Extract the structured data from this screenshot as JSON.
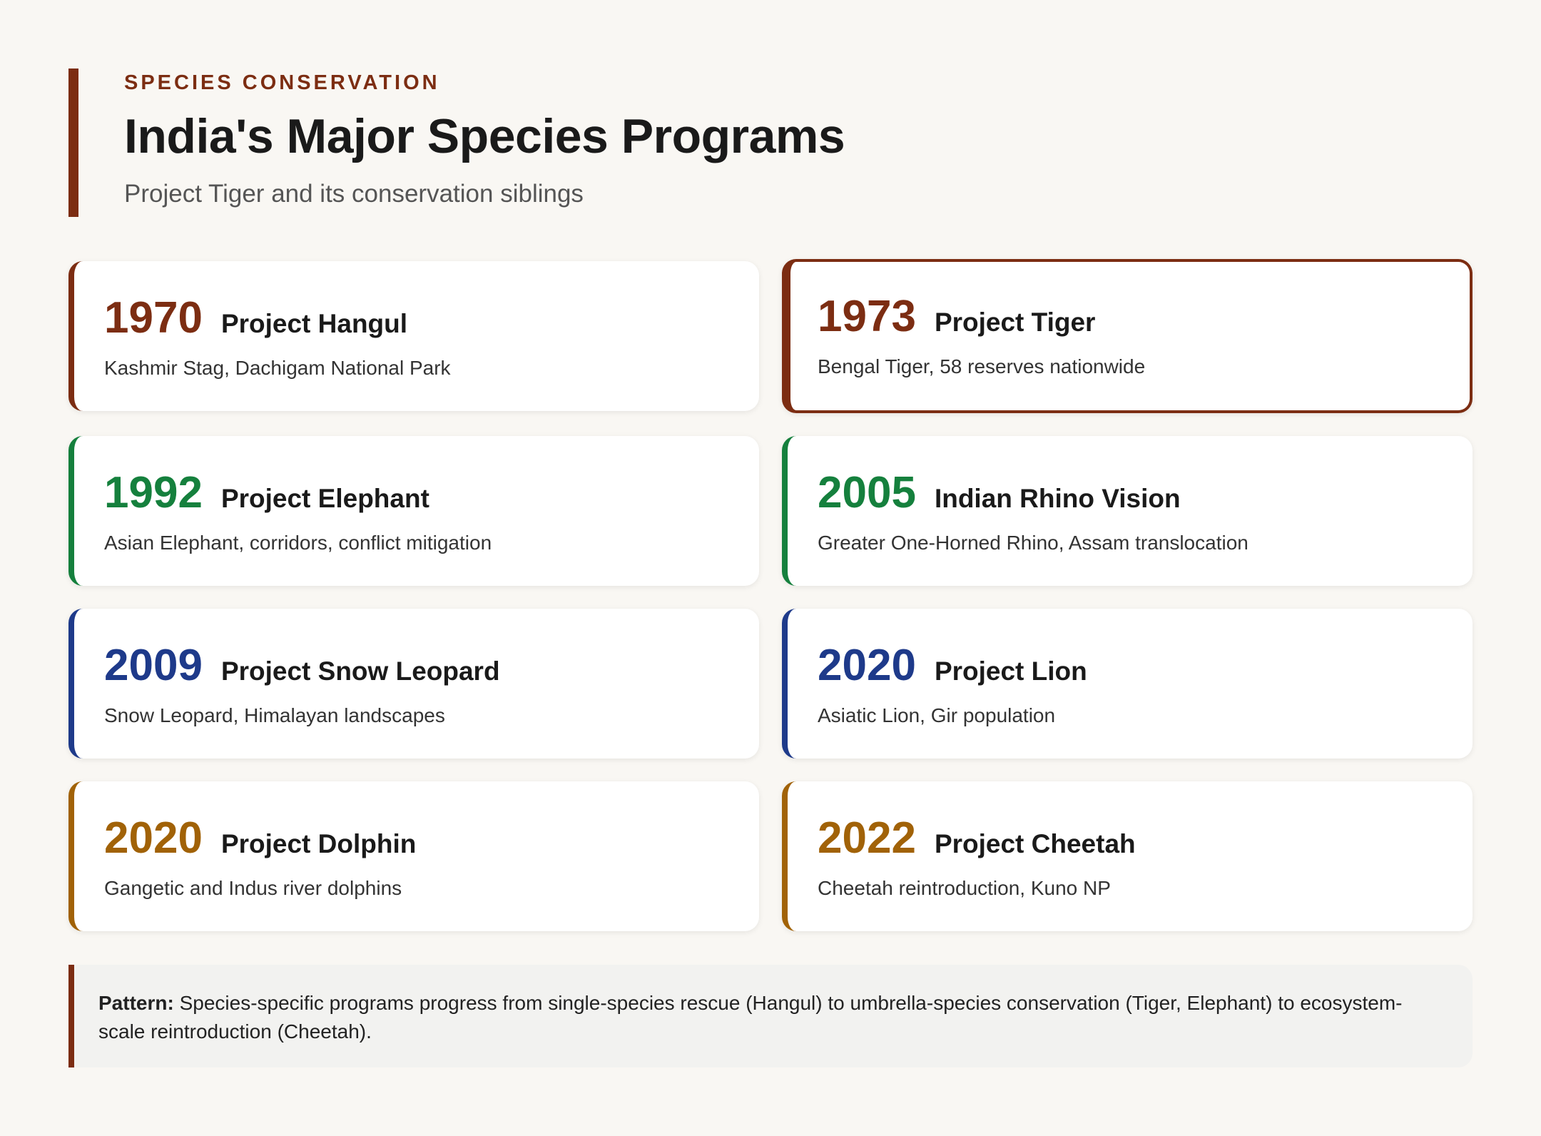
{
  "header": {
    "eyebrow": "SPECIES CONSERVATION",
    "title": "India's Major Species Programs",
    "subtitle": "Project Tiger and its conservation siblings"
  },
  "colors": {
    "brown": "#7c2d12",
    "green": "#15803d",
    "blue": "#1e3a8a",
    "gold": "#a16207"
  },
  "programs": [
    {
      "year": "1970",
      "name": "Project Hangul",
      "desc": "Kashmir Stag, Dachigam National Park",
      "color": "#7c2d12",
      "highlight": false
    },
    {
      "year": "1973",
      "name": "Project Tiger",
      "desc": "Bengal Tiger, 58 reserves nationwide",
      "color": "#7c2d12",
      "highlight": true
    },
    {
      "year": "1992",
      "name": "Project Elephant",
      "desc": "Asian Elephant, corridors, conflict mitigation",
      "color": "#15803d",
      "highlight": false
    },
    {
      "year": "2005",
      "name": "Indian Rhino Vision",
      "desc": "Greater One-Horned Rhino, Assam translocation",
      "color": "#15803d",
      "highlight": false
    },
    {
      "year": "2009",
      "name": "Project Snow Leopard",
      "desc": "Snow Leopard, Himalayan landscapes",
      "color": "#1e3a8a",
      "highlight": false
    },
    {
      "year": "2020",
      "name": "Project Lion",
      "desc": "Asiatic Lion, Gir population",
      "color": "#1e3a8a",
      "highlight": false
    },
    {
      "year": "2020",
      "name": "Project Dolphin",
      "desc": "Gangetic and Indus river dolphins",
      "color": "#a16207",
      "highlight": false
    },
    {
      "year": "2022",
      "name": "Project Cheetah",
      "desc": "Cheetah reintroduction, Kuno NP",
      "color": "#a16207",
      "highlight": false
    }
  ],
  "note": {
    "lead": "Pattern:",
    "text": " Species-specific programs progress from single-species rescue (Hangul) to umbrella-species conservation (Tiger, Elephant) to ecosystem-scale reintroduction (Cheetah)."
  }
}
